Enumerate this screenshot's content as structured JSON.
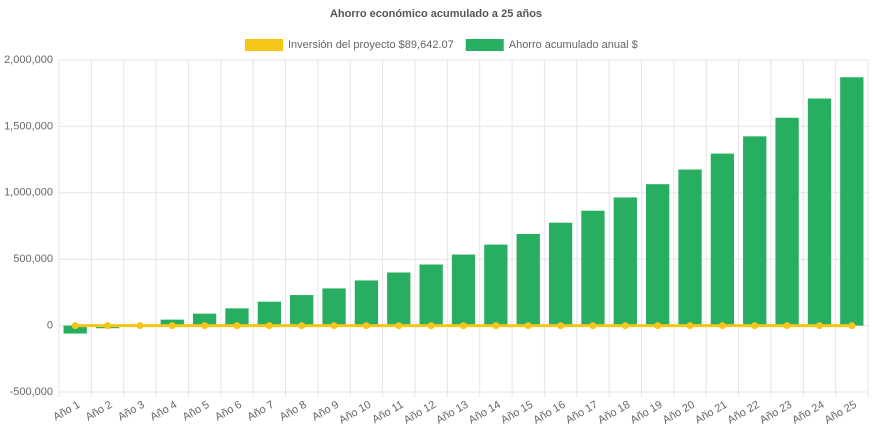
{
  "chart_data": {
    "type": "bar",
    "title": "Ahorro económico acumulado a 25 años",
    "categories": [
      "Año 1",
      "Año 2",
      "Año 3",
      "Año 4",
      "Año 5",
      "Año 6",
      "Año 7",
      "Año 8",
      "Año 9",
      "Año 10",
      "Año 11",
      "Año 12",
      "Año 13",
      "Año 14",
      "Año 15",
      "Año 16",
      "Año 17",
      "Año 18",
      "Año 19",
      "Año 20",
      "Año 21",
      "Año 22",
      "Año 23",
      "Año 24",
      "Año 25"
    ],
    "series": [
      {
        "name": "Inversión del proyecto $89,642.07",
        "type": "line",
        "color": "#f5c518",
        "values": [
          0,
          0,
          0,
          0,
          0,
          0,
          0,
          0,
          0,
          0,
          0,
          0,
          0,
          0,
          0,
          0,
          0,
          0,
          0,
          0,
          0,
          0,
          0,
          0,
          0
        ]
      },
      {
        "name": "Ahorro acumulado anual $",
        "type": "bar",
        "color": "#27ae60",
        "values": [
          -60000,
          -20000,
          5000,
          45000,
          90000,
          130000,
          180000,
          230000,
          280000,
          340000,
          400000,
          460000,
          535000,
          610000,
          690000,
          775000,
          865000,
          965000,
          1065000,
          1175000,
          1295000,
          1425000,
          1565000,
          1710000,
          1870000
        ]
      }
    ],
    "ylim": [
      -500000,
      2000000
    ],
    "yticks": [
      {
        "value": -500000,
        "label": "-500,000"
      },
      0,
      {
        "value": 500000,
        "label": "500,000"
      },
      {
        "value": 1000000,
        "label": "1,000,000"
      },
      {
        "value": 1500000,
        "label": "1,500,000"
      },
      {
        "value": 2000000,
        "label": "2,000,000"
      }
    ],
    "grid": true
  }
}
